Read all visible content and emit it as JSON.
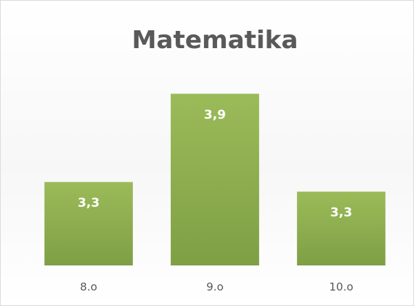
{
  "chart_data": {
    "type": "bar",
    "title": "Matematika",
    "categories": [
      "8.o",
      "9.o",
      "10.o"
    ],
    "values": [
      3.32,
      3.87,
      3.26
    ],
    "value_labels": [
      "3,3",
      "3,9",
      "3,3"
    ],
    "color": "#8fb04f",
    "ylim": [
      2.8,
      4.0
    ]
  }
}
